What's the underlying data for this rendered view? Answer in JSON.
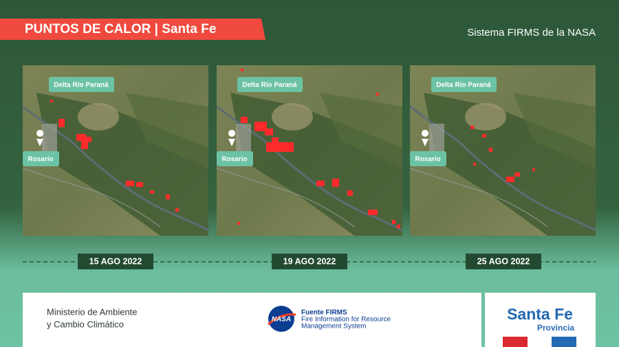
{
  "header": {
    "title": "PUNTOS DE CALOR | Santa Fe",
    "source": "Sistema FIRMS de la NASA"
  },
  "panels": [
    {
      "region_label": "Delta Río Paraná",
      "city_label": "Rosario",
      "date": "15 AGO 2022"
    },
    {
      "region_label": "Delta Río Paraná",
      "city_label": "Rosario",
      "date": "19 AGO 2022"
    },
    {
      "region_label": "Delta Río Paraná",
      "city_label": "Rosario",
      "date": "25 AGO 2022"
    }
  ],
  "footer": {
    "ministry": [
      "Ministerio de Ambiente",
      "y Cambio Climático"
    ],
    "nasa_logo": "NASA",
    "firms": [
      "Fuente FIRMS",
      "Fire Information for Resource",
      "Management System"
    ],
    "province": {
      "name": "Santa Fe",
      "subtitle": "Provincia"
    }
  }
}
